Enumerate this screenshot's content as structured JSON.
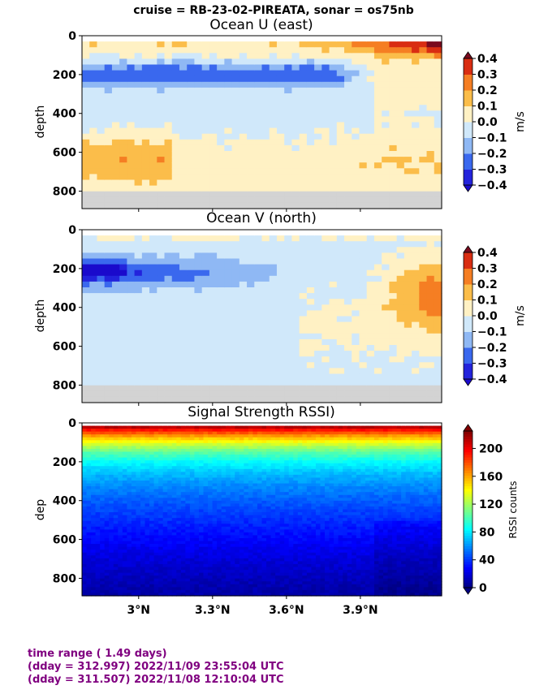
{
  "suptitle": "cruise = RB-23-02-PIREATA,  sonar = os75nb",
  "x_axis": {
    "ticks": [
      3.0,
      3.3,
      3.6,
      3.9
    ],
    "tick_labels": [
      "3°N",
      "3.3°N",
      "3.6°N",
      "3.9°N"
    ],
    "range": [
      2.77,
      4.23
    ]
  },
  "chart_data": [
    {
      "type": "heatmap",
      "title": "Ocean U (east)",
      "ylabel": "depth",
      "ylim": [
        890,
        0
      ],
      "yticks": [
        0,
        200,
        400,
        600,
        800
      ],
      "no_data_below_depth": 790,
      "colorbar": {
        "label": "m/s",
        "ticks": [
          "0.4",
          "0.3",
          "0.2",
          "0.1",
          "0.0",
          "−0.1",
          "−0.2",
          "−0.3",
          "−0.4"
        ],
        "levels": [
          "#fadcc0",
          "#d73027",
          "#f46d43",
          "#fdae61",
          "#fee090",
          "#ffffbf",
          "#e0f3f8",
          "#abd9e9",
          "#74add1",
          "#4575b4",
          "#2020d0"
        ],
        "bins": [
          {
            "min": -0.4,
            "max": -0.3,
            "color": "#2323dc"
          },
          {
            "min": -0.3,
            "max": -0.2,
            "color": "#3a68ee"
          },
          {
            "min": -0.2,
            "max": -0.1,
            "color": "#8fb8f4"
          },
          {
            "min": -0.1,
            "max": 0.0,
            "color": "#d0e8fa"
          },
          {
            "min": 0.0,
            "max": 0.1,
            "color": "#fff1c4"
          },
          {
            "min": 0.1,
            "max": 0.2,
            "color": "#fbbd4a"
          },
          {
            "min": 0.2,
            "max": 0.3,
            "color": "#f57e23"
          },
          {
            "min": 0.3,
            "max": 0.4,
            "color": "#d92d12"
          }
        ],
        "over_color": "#7a0a1e",
        "under_color": "#1a0acc",
        "vmin": -0.4,
        "vmax": 0.4
      }
    },
    {
      "type": "heatmap",
      "title": "Ocean V (north)",
      "ylabel": "depth",
      "ylim": [
        890,
        0
      ],
      "yticks": [
        0,
        200,
        400,
        600,
        800
      ],
      "no_data_below_depth": 790,
      "colorbar": {
        "label": "m/s",
        "ticks": [
          "0.4",
          "0.3",
          "0.2",
          "0.1",
          "0.0",
          "−0.1",
          "−0.2",
          "−0.3",
          "−0.4"
        ],
        "bins": [
          {
            "min": -0.4,
            "max": -0.3,
            "color": "#2323dc"
          },
          {
            "min": -0.3,
            "max": -0.2,
            "color": "#3a68ee"
          },
          {
            "min": -0.2,
            "max": -0.1,
            "color": "#8fb8f4"
          },
          {
            "min": -0.1,
            "max": 0.0,
            "color": "#d0e8fa"
          },
          {
            "min": 0.0,
            "max": 0.1,
            "color": "#fff1c4"
          },
          {
            "min": 0.1,
            "max": 0.2,
            "color": "#fbbd4a"
          },
          {
            "min": 0.2,
            "max": 0.3,
            "color": "#f57e23"
          },
          {
            "min": 0.3,
            "max": 0.4,
            "color": "#d92d12"
          }
        ],
        "over_color": "#7a0a1e",
        "under_color": "#1a0acc",
        "vmin": -0.4,
        "vmax": 0.4
      }
    },
    {
      "type": "heatmap",
      "title": "Signal Strength RSSI)",
      "ylabel": "dep",
      "ylim": [
        890,
        0
      ],
      "yticks": [
        0,
        200,
        400,
        600,
        800
      ],
      "colorbar": {
        "label": "RSSI counts",
        "ticks": [
          "200",
          "160",
          "120",
          "80",
          "40",
          "0"
        ],
        "vmin": 0,
        "vmax": 225,
        "colormap": "jet"
      },
      "profile": [
        {
          "depth": 20,
          "value": 215
        },
        {
          "depth": 40,
          "value": 190
        },
        {
          "depth": 70,
          "value": 160
        },
        {
          "depth": 110,
          "value": 130
        },
        {
          "depth": 150,
          "value": 105
        },
        {
          "depth": 200,
          "value": 85
        },
        {
          "depth": 260,
          "value": 70
        },
        {
          "depth": 330,
          "value": 58
        },
        {
          "depth": 420,
          "value": 46
        },
        {
          "depth": 550,
          "value": 33
        },
        {
          "depth": 700,
          "value": 20
        },
        {
          "depth": 850,
          "value": 10
        }
      ]
    }
  ],
  "footer": {
    "line1": "time range ( 1.49 days)",
    "line2": "(dday = 312.997) 2022/11/09 23:55:04 UTC",
    "line3": "(dday = 311.507) 2022/11/08 12:10:04 UTC"
  }
}
